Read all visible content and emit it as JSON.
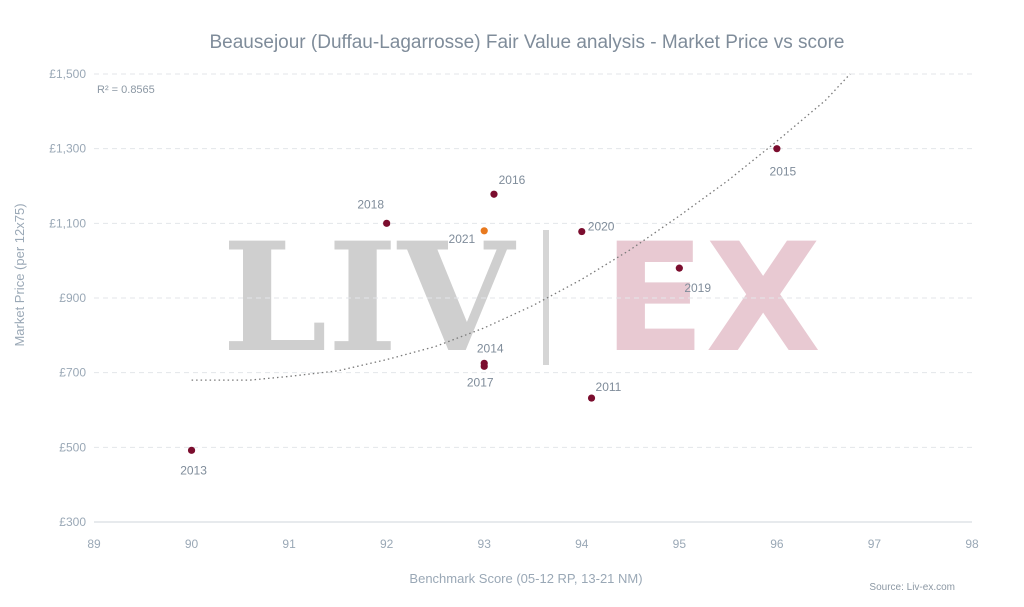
{
  "chart_data": {
    "type": "scatter",
    "title": "Beausejour (Duffau-Lagarrosse) Fair Value analysis - Market Price vs score",
    "xlabel": "Benchmark Score (05-12 RP, 13-21 NM)",
    "ylabel": "Market Price (per 12x75)",
    "xlim": [
      89,
      98
    ],
    "ylim": [
      300,
      1500
    ],
    "x_ticks": [
      "89",
      "90",
      "91",
      "92",
      "93",
      "94",
      "95",
      "96",
      "97",
      "98"
    ],
    "y_ticks": [
      "£300",
      "£500",
      "£700",
      "£900",
      "£1,100",
      "£1,300",
      "£1,500"
    ],
    "grid": "horizontal-dashed",
    "r_squared": "R² = 0.8565",
    "source": "Source: Liv-ex.com",
    "watermark": [
      "LIV",
      "EX"
    ],
    "colors": {
      "point": "#7b0d2e",
      "highlight": "#e8791e",
      "trendline": "#7a7a7a"
    },
    "points": [
      {
        "label": "2013",
        "x": 90.0,
        "y": 492,
        "highlight": false
      },
      {
        "label": "2018",
        "x": 92.0,
        "y": 1100,
        "highlight": false
      },
      {
        "label": "2016",
        "x": 93.1,
        "y": 1178,
        "highlight": false
      },
      {
        "label": "2021",
        "x": 93.0,
        "y": 1080,
        "highlight": true
      },
      {
        "label": "2014",
        "x": 93.0,
        "y": 725,
        "highlight": false
      },
      {
        "label": "2017",
        "x": 93.0,
        "y": 717,
        "highlight": false
      },
      {
        "label": "2020",
        "x": 94.0,
        "y": 1078,
        "highlight": false
      },
      {
        "label": "2011",
        "x": 94.1,
        "y": 632,
        "highlight": false
      },
      {
        "label": "2019",
        "x": 95.0,
        "y": 980,
        "highlight": false
      },
      {
        "label": "2015",
        "x": 96.0,
        "y": 1300,
        "highlight": false
      }
    ],
    "trendline": [
      {
        "x": 90.0,
        "y": 680
      },
      {
        "x": 90.6,
        "y": 680
      },
      {
        "x": 91.0,
        "y": 690
      },
      {
        "x": 91.5,
        "y": 705
      },
      {
        "x": 92.0,
        "y": 735
      },
      {
        "x": 92.5,
        "y": 770
      },
      {
        "x": 93.0,
        "y": 820
      },
      {
        "x": 93.5,
        "y": 880
      },
      {
        "x": 94.0,
        "y": 950
      },
      {
        "x": 94.5,
        "y": 1030
      },
      {
        "x": 95.0,
        "y": 1120
      },
      {
        "x": 95.5,
        "y": 1215
      },
      {
        "x": 96.0,
        "y": 1320
      },
      {
        "x": 96.5,
        "y": 1430
      },
      {
        "x": 96.75,
        "y": 1500
      }
    ]
  }
}
